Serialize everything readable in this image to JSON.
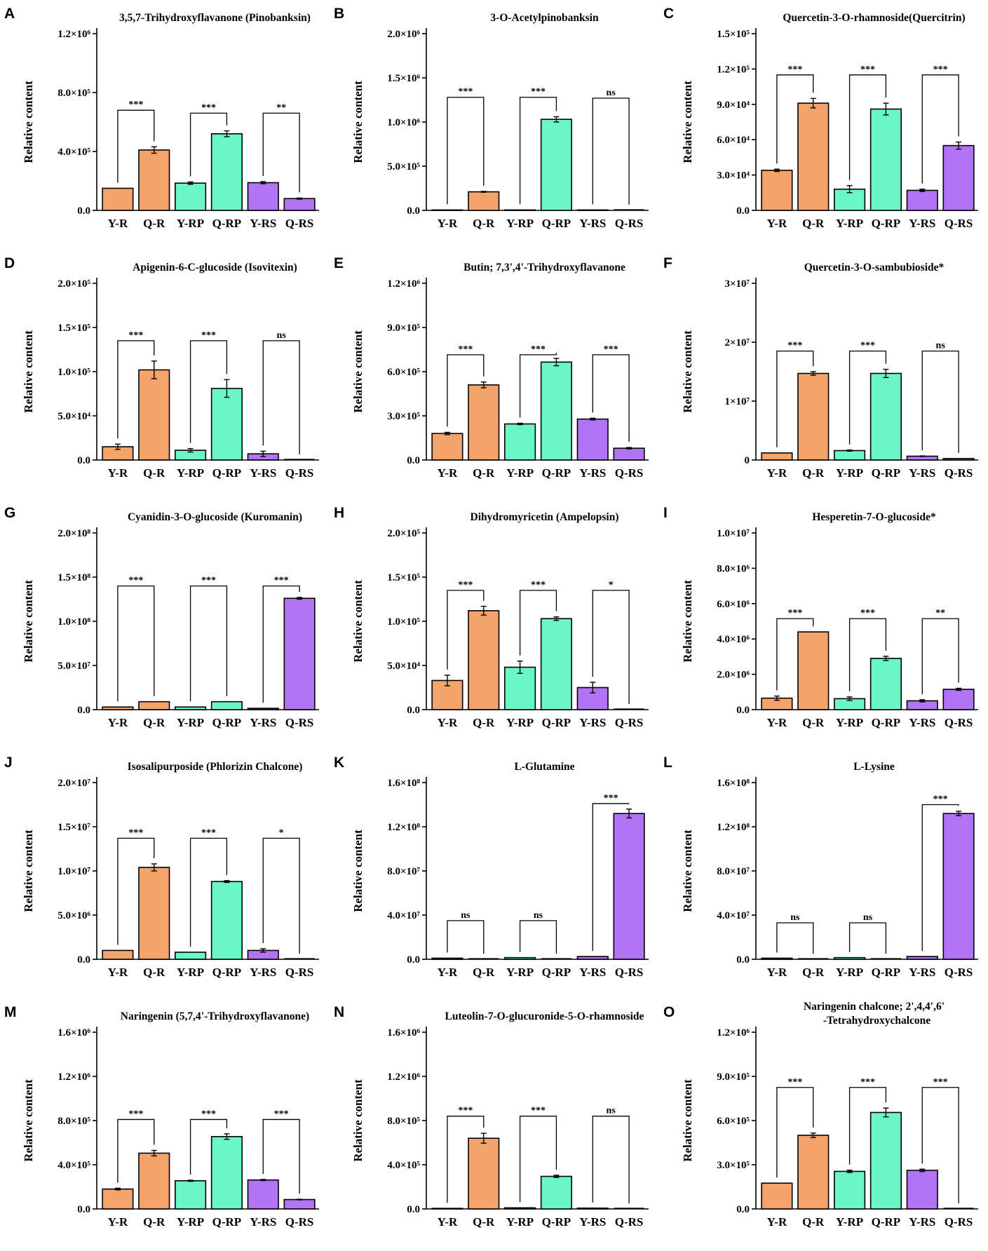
{
  "figure": {
    "colors": {
      "Y-R": "#F4A46A",
      "Q-R": "#F4A46A",
      "Y-RP": "#6AF7C5",
      "Q-RP": "#6AF7C5",
      "Y-RS": "#B274F5",
      "Q-RS": "#B274F5"
    },
    "ylabel": "Relative content"
  },
  "chart_data": [
    {
      "panel": "A",
      "type": "bar",
      "title": "3,5,7-Trihydroxyflavanone (Pinobanksin)",
      "categories": [
        "Y-R",
        "Q-R",
        "Y-RP",
        "Q-RP",
        "Y-RS",
        "Q-RS"
      ],
      "values": [
        150000,
        410000,
        185000,
        520000,
        188000,
        80000
      ],
      "errors": [
        0,
        22000,
        8000,
        20000,
        7000,
        4000
      ],
      "ylim": [
        0,
        1200000
      ],
      "ticks": [
        "0.0",
        "4.0×10⁵",
        "8.0×10⁵",
        "1.2×10⁶"
      ],
      "tick_values": [
        0,
        400000,
        800000,
        1200000
      ],
      "ylabel": "Relative content",
      "comparisons": [
        {
          "pair": [
            "Y-R",
            "Q-R"
          ],
          "label": "***",
          "y": 680000
        },
        {
          "pair": [
            "Y-RP",
            "Q-RP"
          ],
          "label": "***",
          "y": 660000
        },
        {
          "pair": [
            "Y-RS",
            "Q-RS"
          ],
          "label": "**",
          "y": 660000
        }
      ]
    },
    {
      "panel": "B",
      "type": "bar",
      "title": "3-O-Acetylpinobanksin",
      "categories": [
        "Y-R",
        "Q-R",
        "Y-RP",
        "Q-RP",
        "Y-RS",
        "Q-RS"
      ],
      "values": [
        5000,
        210000,
        5000,
        1030000,
        5000,
        2000
      ],
      "errors": [
        0,
        5000,
        0,
        30000,
        0,
        0
      ],
      "ylim": [
        0,
        2000000
      ],
      "ticks": [
        "0.0",
        "5.0×10⁵",
        "1.0×10⁶",
        "1.5×10⁶",
        "2.0×10⁶"
      ],
      "tick_values": [
        0,
        500000,
        1000000,
        1500000,
        2000000
      ],
      "ylabel": "Relative content",
      "comparisons": [
        {
          "pair": [
            "Y-R",
            "Q-R"
          ],
          "label": "***",
          "y": 1280000
        },
        {
          "pair": [
            "Y-RP",
            "Q-RP"
          ],
          "label": "***",
          "y": 1280000
        },
        {
          "pair": [
            "Y-RS",
            "Q-RS"
          ],
          "label": "ns",
          "y": 1270000
        }
      ]
    },
    {
      "panel": "C",
      "type": "bar",
      "title": "Quercetin-3-O-rhamnoside(Quercitrin)",
      "categories": [
        "Y-R",
        "Q-R",
        "Y-RP",
        "Q-RP",
        "Y-RS",
        "Q-RS"
      ],
      "values": [
        34000,
        91000,
        18000,
        86000,
        17000,
        55000
      ],
      "errors": [
        1000,
        4000,
        3000,
        5000,
        1000,
        3000
      ],
      "ylim": [
        0,
        150000
      ],
      "ticks": [
        "0.0",
        "3.0×10⁴",
        "6.0×10⁴",
        "9.0×10⁴",
        "1.2×10⁵",
        "1.5×10⁵"
      ],
      "tick_values": [
        0,
        30000,
        60000,
        90000,
        120000,
        150000
      ],
      "ylabel": "Relative content",
      "comparisons": [
        {
          "pair": [
            "Y-R",
            "Q-R"
          ],
          "label": "***",
          "y": 115000
        },
        {
          "pair": [
            "Y-RP",
            "Q-RP"
          ],
          "label": "***",
          "y": 115000
        },
        {
          "pair": [
            "Y-RS",
            "Q-RS"
          ],
          "label": "***",
          "y": 115000
        }
      ]
    },
    {
      "panel": "D",
      "type": "bar",
      "title": "Apigenin-6-C-glucoside (Isovitexin)",
      "categories": [
        "Y-R",
        "Q-R",
        "Y-RP",
        "Q-RP",
        "Y-RS",
        "Q-RS"
      ],
      "values": [
        15000,
        102000,
        11000,
        81000,
        7000,
        0
      ],
      "errors": [
        3000,
        10000,
        2000,
        10000,
        3000,
        0
      ],
      "ylim": [
        0,
        200000
      ],
      "ticks": [
        "0.0",
        "5.0×10⁴",
        "1.0×10⁵",
        "1.5×10⁵",
        "2.0×10⁵"
      ],
      "tick_values": [
        0,
        50000,
        100000,
        150000,
        200000
      ],
      "ylabel": "Relative content",
      "comparisons": [
        {
          "pair": [
            "Y-R",
            "Q-R"
          ],
          "label": "***",
          "y": 135000
        },
        {
          "pair": [
            "Y-RP",
            "Q-RP"
          ],
          "label": "***",
          "y": 135000
        },
        {
          "pair": [
            "Y-RS",
            "Q-RS"
          ],
          "label": "ns",
          "y": 135000
        }
      ]
    },
    {
      "panel": "E",
      "type": "bar",
      "title": "Butin; 7,3',4'-Trihydroxyflavanone",
      "categories": [
        "Y-R",
        "Q-R",
        "Y-RP",
        "Q-RP",
        "Y-RS",
        "Q-RS"
      ],
      "values": [
        180000,
        510000,
        245000,
        665000,
        278000,
        80000
      ],
      "errors": [
        8000,
        20000,
        5000,
        25000,
        6000,
        5000
      ],
      "ylim": [
        0,
        1200000
      ],
      "ticks": [
        "0.0",
        "3.0×10⁵",
        "6.0×10⁵",
        "9.0×10⁵",
        "1.2×10⁶"
      ],
      "tick_values": [
        0,
        300000,
        600000,
        900000,
        1200000
      ],
      "ylabel": "Relative content",
      "comparisons": [
        {
          "pair": [
            "Y-R",
            "Q-R"
          ],
          "label": "***",
          "y": 715000
        },
        {
          "pair": [
            "Y-RP",
            "Q-RP"
          ],
          "label": "***",
          "y": 715000
        },
        {
          "pair": [
            "Y-RS",
            "Q-RS"
          ],
          "label": "***",
          "y": 715000
        }
      ]
    },
    {
      "panel": "F",
      "type": "bar",
      "title": "Quercetin-3-O-sambubioside*",
      "categories": [
        "Y-R",
        "Q-R",
        "Y-RP",
        "Q-RP",
        "Y-RS",
        "Q-RS"
      ],
      "values": [
        1200000,
        14700000,
        1600000,
        14700000,
        650000,
        250000
      ],
      "errors": [
        0,
        300000,
        100000,
        700000,
        50000,
        0
      ],
      "ylim": [
        0,
        30000000
      ],
      "ticks": [
        "0",
        "1×10⁷",
        "2×10⁷",
        "3×10⁷"
      ],
      "tick_values": [
        0,
        10000000,
        20000000,
        30000000
      ],
      "ylabel": "Relative content",
      "comparisons": [
        {
          "pair": [
            "Y-R",
            "Q-R"
          ],
          "label": "***",
          "y": 18500000
        },
        {
          "pair": [
            "Y-RP",
            "Q-RP"
          ],
          "label": "***",
          "y": 18500000
        },
        {
          "pair": [
            "Y-RS",
            "Q-RS"
          ],
          "label": "ns",
          "y": 18500000
        }
      ]
    },
    {
      "panel": "G",
      "type": "bar",
      "title": "Cyanidin-3-O-glucoside (Kuromanin)",
      "categories": [
        "Y-R",
        "Q-R",
        "Y-RP",
        "Q-RP",
        "Y-RS",
        "Q-RS"
      ],
      "values": [
        3000000,
        9000000,
        3000000,
        9000000,
        1500000,
        126000000
      ],
      "errors": [
        0,
        0,
        0,
        0,
        0,
        1000000
      ],
      "ylim": [
        0,
        200000000
      ],
      "ticks": [
        "0.0",
        "5.0×10⁷",
        "1.0×10⁸",
        "1.5×10⁸",
        "2.0×10⁸"
      ],
      "tick_values": [
        0,
        50000000,
        100000000,
        150000000,
        200000000
      ],
      "ylabel": "Relative content",
      "comparisons": [
        {
          "pair": [
            "Y-R",
            "Q-R"
          ],
          "label": "***",
          "y": 140000000
        },
        {
          "pair": [
            "Y-RP",
            "Q-RP"
          ],
          "label": "***",
          "y": 140000000
        },
        {
          "pair": [
            "Y-RS",
            "Q-RS"
          ],
          "label": "***",
          "y": 140000000
        }
      ]
    },
    {
      "panel": "H",
      "type": "bar",
      "title": "Dihydromyricetin (Ampelopsin)",
      "categories": [
        "Y-R",
        "Q-R",
        "Y-RP",
        "Q-RP",
        "Y-RS",
        "Q-RS"
      ],
      "values": [
        33000,
        112000,
        48000,
        103000,
        25000,
        0
      ],
      "errors": [
        6000,
        5000,
        7000,
        2000,
        6000,
        0
      ],
      "ylim": [
        0,
        200000
      ],
      "ticks": [
        "0.0",
        "5.0×10⁴",
        "1.0×10⁵",
        "1.5×10⁵",
        "2.0×10⁵"
      ],
      "tick_values": [
        0,
        50000,
        100000,
        150000,
        200000
      ],
      "ylabel": "Relative content",
      "comparisons": [
        {
          "pair": [
            "Y-R",
            "Q-R"
          ],
          "label": "***",
          "y": 135000
        },
        {
          "pair": [
            "Y-RP",
            "Q-RP"
          ],
          "label": "***",
          "y": 135000
        },
        {
          "pair": [
            "Y-RS",
            "Q-RS"
          ],
          "label": "*",
          "y": 135000
        }
      ]
    },
    {
      "panel": "I",
      "type": "bar",
      "title": "Hesperetin-7-O-glucoside*",
      "categories": [
        "Y-R",
        "Q-R",
        "Y-RP",
        "Q-RP",
        "Y-RS",
        "Q-RS"
      ],
      "values": [
        650000,
        4400000,
        620000,
        2900000,
        500000,
        1150000
      ],
      "errors": [
        120000,
        0,
        100000,
        120000,
        60000,
        60000
      ],
      "ylim": [
        0,
        10000000
      ],
      "ticks": [
        "0.0",
        "2.0×10⁶",
        "4.0×10⁶",
        "6.0×10⁶",
        "8.0×10⁶",
        "1.0×10⁷"
      ],
      "tick_values": [
        0,
        2000000,
        4000000,
        6000000,
        8000000,
        10000000
      ],
      "ylabel": "Relative content",
      "comparisons": [
        {
          "pair": [
            "Y-R",
            "Q-R"
          ],
          "label": "***",
          "y": 5150000
        },
        {
          "pair": [
            "Y-RP",
            "Q-RP"
          ],
          "label": "***",
          "y": 5150000
        },
        {
          "pair": [
            "Y-RS",
            "Q-RS"
          ],
          "label": "**",
          "y": 5150000
        }
      ]
    },
    {
      "panel": "J",
      "type": "bar",
      "title": "Isosalipurposide (Phlorizin Chalcone)",
      "categories": [
        "Y-R",
        "Q-R",
        "Y-RP",
        "Q-RP",
        "Y-RS",
        "Q-RS"
      ],
      "values": [
        1000000,
        10400000,
        800000,
        8800000,
        1000000,
        0
      ],
      "errors": [
        0,
        400000,
        0,
        100000,
        200000,
        0
      ],
      "ylim": [
        0,
        20000000
      ],
      "ticks": [
        "0.0",
        "5.0×10⁶",
        "1.0×10⁷",
        "1.5×10⁷",
        "2.0×10⁷"
      ],
      "tick_values": [
        0,
        5000000,
        10000000,
        15000000,
        20000000
      ],
      "ylabel": "Relative content",
      "comparisons": [
        {
          "pair": [
            "Y-R",
            "Q-R"
          ],
          "label": "***",
          "y": 13700000
        },
        {
          "pair": [
            "Y-RP",
            "Q-RP"
          ],
          "label": "***",
          "y": 13700000
        },
        {
          "pair": [
            "Y-RS",
            "Q-RS"
          ],
          "label": "*",
          "y": 13700000
        }
      ]
    },
    {
      "panel": "K",
      "type": "bar",
      "title": "L-Glutamine",
      "categories": [
        "Y-R",
        "Q-R",
        "Y-RP",
        "Q-RP",
        "Y-RS",
        "Q-RS"
      ],
      "values": [
        1000000,
        0,
        1500000,
        0,
        2500000,
        132000000
      ],
      "errors": [
        0,
        0,
        0,
        0,
        0,
        4000000
      ],
      "ylim": [
        0,
        160000000
      ],
      "ticks": [
        "0.0",
        "4.0×10⁷",
        "8.0×10⁷",
        "1.2×10⁸",
        "1.6×10⁸"
      ],
      "tick_values": [
        0,
        40000000,
        80000000,
        120000000,
        160000000
      ],
      "ylabel": "Relative content",
      "comparisons": [
        {
          "pair": [
            "Y-R",
            "Q-R"
          ],
          "label": "ns",
          "y": 35000000
        },
        {
          "pair": [
            "Y-RP",
            "Q-RP"
          ],
          "label": "ns",
          "y": 35000000
        },
        {
          "pair": [
            "Y-RS",
            "Q-RS"
          ],
          "label": "***",
          "y": 141000000
        }
      ]
    },
    {
      "panel": "L",
      "type": "bar",
      "title": "L-Lysine",
      "categories": [
        "Y-R",
        "Q-R",
        "Y-RP",
        "Q-RP",
        "Y-RS",
        "Q-RS"
      ],
      "values": [
        1000000,
        0,
        1500000,
        0,
        2500000,
        132000000
      ],
      "errors": [
        0,
        0,
        0,
        0,
        0,
        2000000
      ],
      "ylim": [
        0,
        160000000
      ],
      "ticks": [
        "0.0",
        "4.0×10⁷",
        "8.0×10⁷",
        "1.2×10⁸",
        "1.6×10⁸"
      ],
      "tick_values": [
        0,
        40000000,
        80000000,
        120000000,
        160000000
      ],
      "ylabel": "Relative content",
      "comparisons": [
        {
          "pair": [
            "Y-R",
            "Q-R"
          ],
          "label": "ns",
          "y": 33000000
        },
        {
          "pair": [
            "Y-RP",
            "Q-RP"
          ],
          "label": "ns",
          "y": 33000000
        },
        {
          "pair": [
            "Y-RS",
            "Q-RS"
          ],
          "label": "***",
          "y": 140000000
        }
      ]
    },
    {
      "panel": "M",
      "type": "bar",
      "title": "Naringenin (5,7,4'-Trihydroxyflavanone)",
      "categories": [
        "Y-R",
        "Q-R",
        "Y-RP",
        "Q-RP",
        "Y-RS",
        "Q-RS"
      ],
      "values": [
        180000,
        505000,
        255000,
        655000,
        262000,
        85000
      ],
      "errors": [
        8000,
        25000,
        5000,
        25000,
        5000,
        3000
      ],
      "ylim": [
        0,
        1600000
      ],
      "ticks": [
        "0.0",
        "4.0×10⁵",
        "8.0×10⁵",
        "1.2×10⁶",
        "1.6×10⁶"
      ],
      "tick_values": [
        0,
        400000,
        800000,
        1200000,
        1600000
      ],
      "ylabel": "Relative content",
      "comparisons": [
        {
          "pair": [
            "Y-R",
            "Q-R"
          ],
          "label": "***",
          "y": 810000
        },
        {
          "pair": [
            "Y-RP",
            "Q-RP"
          ],
          "label": "***",
          "y": 810000
        },
        {
          "pair": [
            "Y-RS",
            "Q-RS"
          ],
          "label": "***",
          "y": 810000
        }
      ]
    },
    {
      "panel": "N",
      "type": "bar",
      "title": "Luteolin-7-O-glucuronide-5-O-rhamnoside",
      "categories": [
        "Y-R",
        "Q-R",
        "Y-RP",
        "Q-RP",
        "Y-RS",
        "Q-RS"
      ],
      "values": [
        5000,
        640000,
        10000,
        295000,
        7000,
        0
      ],
      "errors": [
        0,
        45000,
        0,
        10000,
        0,
        0
      ],
      "ylim": [
        0,
        1600000
      ],
      "ticks": [
        "0.0",
        "4.0×10⁵",
        "8.0×10⁵",
        "1.2×10⁶",
        "1.6×10⁶"
      ],
      "tick_values": [
        0,
        400000,
        800000,
        1200000,
        1600000
      ],
      "ylabel": "Relative content",
      "comparisons": [
        {
          "pair": [
            "Y-R",
            "Q-R"
          ],
          "label": "***",
          "y": 840000
        },
        {
          "pair": [
            "Y-RP",
            "Q-RP"
          ],
          "label": "***",
          "y": 840000
        },
        {
          "pair": [
            "Y-RS",
            "Q-RS"
          ],
          "label": "ns",
          "y": 840000
        }
      ]
    },
    {
      "panel": "O",
      "type": "bar",
      "title": "Naringenin chalcone; 2',4,4',6'",
      "title2": "-Tetrahydroxychalcone",
      "categories": [
        "Y-R",
        "Q-R",
        "Y-RP",
        "Q-RP",
        "Y-RS",
        "Q-RS"
      ],
      "values": [
        175000,
        500000,
        255000,
        655000,
        262000,
        0
      ],
      "errors": [
        0,
        15000,
        8000,
        30000,
        8000,
        0
      ],
      "ylim": [
        0,
        1200000
      ],
      "ticks": [
        "0.0",
        "3.0×10⁵",
        "6.0×10⁵",
        "9.0×10⁵",
        "1.2×10⁶"
      ],
      "tick_values": [
        0,
        300000,
        600000,
        900000,
        1200000
      ],
      "ylabel": "Relative content",
      "comparisons": [
        {
          "pair": [
            "Y-R",
            "Q-R"
          ],
          "label": "***",
          "y": 825000
        },
        {
          "pair": [
            "Y-RP",
            "Q-RP"
          ],
          "label": "***",
          "y": 825000
        },
        {
          "pair": [
            "Y-RS",
            "Q-RS"
          ],
          "label": "***",
          "y": 825000
        }
      ]
    }
  ]
}
